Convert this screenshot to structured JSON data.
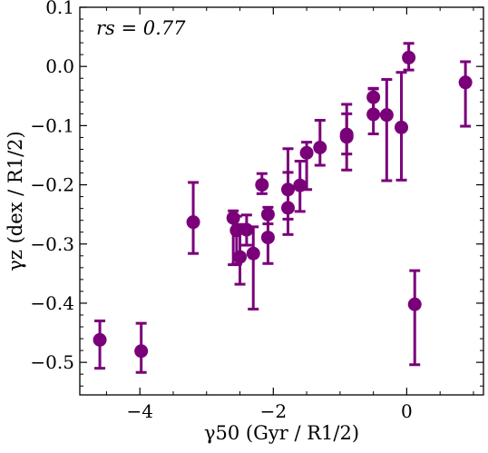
{
  "chart_data": {
    "type": "scatter",
    "title": "",
    "xlabel": "γ50 (Gyr / R1/2)",
    "ylabel": "γz (dex / R1/2)",
    "annotation": "rs = 0.77",
    "xlim": [
      -4.9,
      1.15
    ],
    "ylim": [
      -0.555,
      0.1
    ],
    "x_ticks": [
      -4,
      -2,
      0
    ],
    "x_tick_labels": [
      "−4",
      "−2",
      "0"
    ],
    "y_ticks": [
      -0.5,
      -0.4,
      -0.3,
      -0.2,
      -0.1,
      0.0,
      0.1
    ],
    "y_tick_labels": [
      "−0.5",
      "−0.4",
      "−0.3",
      "−0.2",
      "−0.1",
      "0.0",
      "0.1"
    ],
    "grid": false,
    "marker_color": "#7a007a",
    "points": [
      {
        "x": -4.6,
        "y": -0.462,
        "err_lo": 0.048,
        "err_hi": 0.032
      },
      {
        "x": -3.98,
        "y": -0.481,
        "err_lo": 0.036,
        "err_hi": 0.047
      },
      {
        "x": -3.2,
        "y": -0.263,
        "err_lo": 0.053,
        "err_hi": 0.067
      },
      {
        "x": -2.6,
        "y": -0.256,
        "err_lo": 0.079,
        "err_hi": 0.012
      },
      {
        "x": -2.55,
        "y": -0.277,
        "err_lo": 0.057,
        "err_hi": 0.024
      },
      {
        "x": -2.5,
        "y": -0.322,
        "err_lo": 0.046,
        "err_hi": 0.055
      },
      {
        "x": -2.4,
        "y": -0.276,
        "err_lo": 0.026,
        "err_hi": 0.025
      },
      {
        "x": -2.3,
        "y": -0.316,
        "err_lo": 0.094,
        "err_hi": 0.045
      },
      {
        "x": -2.17,
        "y": -0.2,
        "err_lo": 0.015,
        "err_hi": 0.019
      },
      {
        "x": -2.08,
        "y": -0.25,
        "err_lo": 0.016,
        "err_hi": 0.012
      },
      {
        "x": -2.08,
        "y": -0.289,
        "err_lo": 0.044,
        "err_hi": 0.035
      },
      {
        "x": -1.78,
        "y": -0.208,
        "err_lo": 0.05,
        "err_hi": 0.029
      },
      {
        "x": -1.78,
        "y": -0.239,
        "err_lo": 0.045,
        "err_hi": 0.1
      },
      {
        "x": -1.6,
        "y": -0.201,
        "err_lo": 0.044,
        "err_hi": 0.041
      },
      {
        "x": -1.5,
        "y": -0.146,
        "err_lo": 0.062,
        "err_hi": 0.018
      },
      {
        "x": -1.3,
        "y": -0.137,
        "err_lo": 0.03,
        "err_hi": 0.046
      },
      {
        "x": -0.9,
        "y": -0.115,
        "err_lo": 0.033,
        "err_hi": 0.051
      },
      {
        "x": -0.9,
        "y": -0.119,
        "err_lo": 0.056,
        "err_hi": 0.039
      },
      {
        "x": -0.5,
        "y": -0.052,
        "err_lo": 0.024,
        "err_hi": 0.014
      },
      {
        "x": -0.5,
        "y": -0.081,
        "err_lo": 0.033,
        "err_hi": 0.044
      },
      {
        "x": -0.3,
        "y": -0.082,
        "err_lo": 0.111,
        "err_hi": 0.06
      },
      {
        "x": -0.08,
        "y": -0.103,
        "err_lo": 0.089,
        "err_hi": 0.093
      },
      {
        "x": 0.03,
        "y": 0.015,
        "err_lo": 0.021,
        "err_hi": 0.024
      },
      {
        "x": 0.12,
        "y": -0.402,
        "err_lo": 0.102,
        "err_hi": 0.057
      },
      {
        "x": 0.88,
        "y": -0.027,
        "err_lo": 0.074,
        "err_hi": 0.035
      }
    ]
  }
}
